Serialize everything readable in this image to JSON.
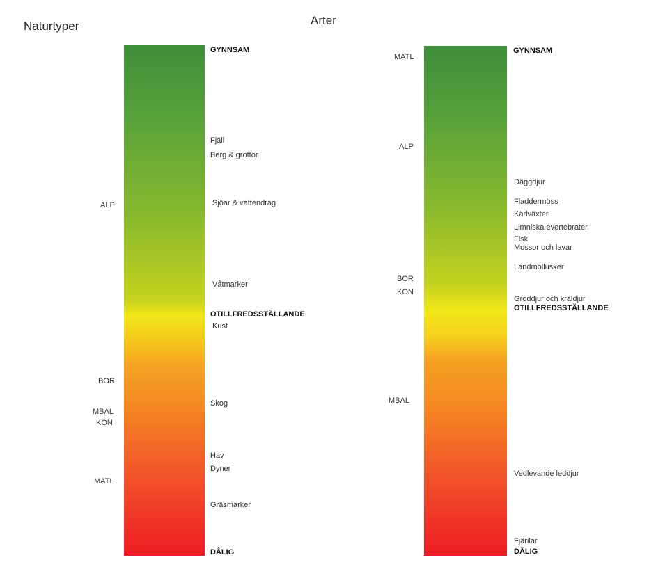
{
  "headings": {
    "left": "Naturtyper",
    "center": "Arter"
  },
  "left_panel": {
    "top_label": "GYNNSAM",
    "middle_label": "OTILLFREDSSTÄLLANDE",
    "bottom_label": "DÅLIG",
    "items": [
      "Fjäll",
      "Berg & grottor",
      "Sjöar & vattendrag",
      "Våtmarker",
      "Kust",
      "Skog",
      "Hav",
      "Dyner",
      "Gräsmarker"
    ],
    "regions": [
      "ALP",
      "BOR",
      "MBAL",
      "KON",
      "MATL"
    ]
  },
  "right_panel": {
    "top_label": "GYNNSAM",
    "middle_label": "OTILLFREDSSTÄLLANDE",
    "bottom_label": "DÅLIG",
    "items": [
      "Däggdjur",
      "Fladdermöss",
      "Kärlväxter",
      "Limniska evertebrater",
      "Fisk",
      "Mossor och lavar",
      "Landmollusker",
      "Groddjur och kräldjur",
      "Vedlevande leddjur",
      "Fjärilar"
    ],
    "regions": [
      "MATL",
      "ALP",
      "BOR",
      "KON",
      "MBAL"
    ]
  },
  "colors": {
    "good": "#3e8e3a",
    "unsatisfactory": "#f2e81a",
    "bad": "#ee1c24"
  }
}
